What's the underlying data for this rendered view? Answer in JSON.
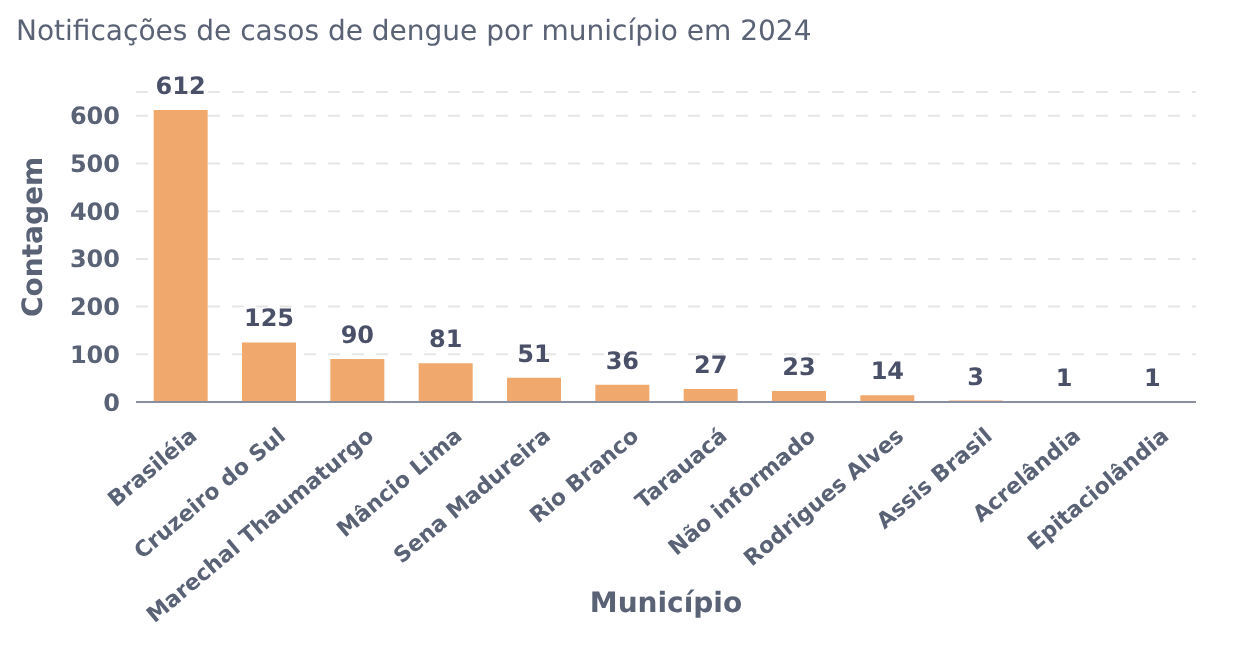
{
  "chart_data": {
    "type": "bar",
    "title": "Notificações de casos de dengue por município em 2024",
    "xlabel": "Município",
    "ylabel": "Contagem",
    "categories": [
      "Brasiléia",
      "Cruzeiro do Sul",
      "Marechal Thaumaturgo",
      "Mâncio Lima",
      "Sena Madureira",
      "Rio Branco",
      "Tarauacá",
      "Não informado",
      "Rodrigues Alves",
      "Assis Brasil",
      "Acrelândia",
      "Epitaciolândia"
    ],
    "values": [
      612,
      125,
      90,
      81,
      51,
      36,
      27,
      23,
      14,
      3,
      1,
      1
    ],
    "color": "#f0a86c",
    "ylim": [
      0,
      650
    ],
    "yticks": [
      0,
      100,
      200,
      300,
      400,
      500,
      600
    ],
    "grid": "y",
    "data_labels": true
  }
}
